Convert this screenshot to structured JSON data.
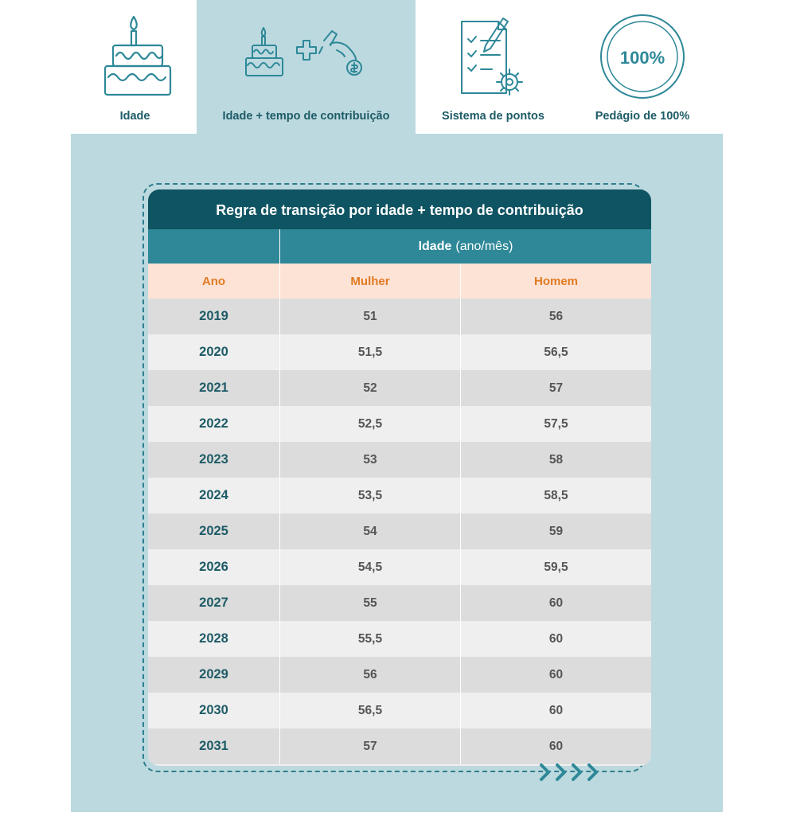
{
  "tabs": [
    {
      "label": "Idade",
      "icon": "birthday-cake-icon",
      "active": false
    },
    {
      "label": "Idade + tempo de contribuição",
      "icon": "cake-plus-coin-icon",
      "active": true
    },
    {
      "label": "Sistema de pontos",
      "icon": "checklist-gear-icon",
      "active": false
    },
    {
      "label": "Pedágio de 100%",
      "icon": "hundred-percent-badge-icon",
      "active": false,
      "badge_text": "100%"
    }
  ],
  "table": {
    "title": "Regra de transição por idade + tempo de contribuição",
    "group_header": {
      "bold": "Idade",
      "rest": "(ano/mês)"
    },
    "columns": [
      "Ano",
      "Mulher",
      "Homem"
    ],
    "rows": [
      [
        "2019",
        "51",
        "56"
      ],
      [
        "2020",
        "51,5",
        "56,5"
      ],
      [
        "2021",
        "52",
        "57"
      ],
      [
        "2022",
        "52,5",
        "57,5"
      ],
      [
        "2023",
        "53",
        "58"
      ],
      [
        "2024",
        "53,5",
        "58,5"
      ],
      [
        "2025",
        "54",
        "59"
      ],
      [
        "2026",
        "54,5",
        "59,5"
      ],
      [
        "2027",
        "55",
        "60"
      ],
      [
        "2028",
        "55,5",
        "60"
      ],
      [
        "2029",
        "56",
        "60"
      ],
      [
        "2030",
        "56,5",
        "60"
      ],
      [
        "2031",
        "57",
        "60"
      ]
    ]
  },
  "colors": {
    "brand_dark": "#0f5462",
    "brand_mid": "#2e8898",
    "panel_bg": "#bcd9df",
    "header_accent": "#e07a22",
    "header_bg": "#fde3d6"
  }
}
